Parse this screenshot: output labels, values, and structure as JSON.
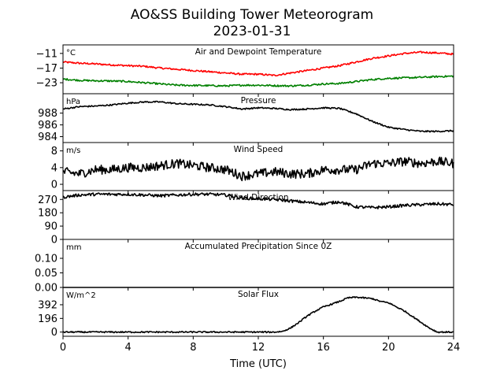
{
  "figure": {
    "title_line1": "AO&SS Building Tower Meteorogram",
    "title_line2": "2023-01-31",
    "xlabel": "Time (UTC)"
  },
  "chart_data": [
    {
      "type": "line",
      "title": "Air and Dewpoint Temperature",
      "unit_label": "°C",
      "ylim": [
        -27.5,
        -7.5
      ],
      "yticks": [
        -11,
        -17,
        -23
      ],
      "ytick_labels": [
        "−11",
        "−17",
        "−23"
      ],
      "xlim": [
        0,
        24
      ],
      "colors": [
        "#ff0000",
        "#008000"
      ],
      "series": [
        {
          "x": [
            0,
            1,
            2,
            3,
            4,
            5,
            6,
            7,
            8,
            9,
            10,
            11,
            12,
            13,
            14,
            15,
            16,
            17,
            18,
            19,
            20,
            21,
            22,
            23,
            24
          ],
          "values": [
            -14.5,
            -15,
            -15.3,
            -15.7,
            -16,
            -16.3,
            -17,
            -17.5,
            -18,
            -18.5,
            -19,
            -19.5,
            -19.5,
            -20,
            -19,
            -18,
            -17,
            -16,
            -14.5,
            -13,
            -12,
            -11,
            -10.5,
            -10.8,
            -11.3
          ],
          "noise": 0.35
        },
        {
          "x": [
            0,
            1,
            2,
            3,
            4,
            5,
            6,
            7,
            8,
            9,
            10,
            11,
            12,
            13,
            14,
            15,
            16,
            17,
            18,
            19,
            20,
            21,
            22,
            23,
            24
          ],
          "values": [
            -21.5,
            -22,
            -22.2,
            -22.3,
            -22.5,
            -23,
            -23.5,
            -24,
            -24.1,
            -24.2,
            -24.3,
            -24,
            -24,
            -24.2,
            -24.3,
            -24,
            -23.5,
            -23.3,
            -22.5,
            -21.7,
            -21.2,
            -21,
            -20.8,
            -20.5,
            -20.3
          ],
          "noise": 0.35
        }
      ]
    },
    {
      "type": "line",
      "title": "Pressure",
      "unit_label": "hPa",
      "ylim": [
        983,
        991.3
      ],
      "yticks": [
        988,
        986,
        984
      ],
      "ytick_labels": [
        "988",
        "986",
        "984"
      ],
      "xlim": [
        0,
        24
      ],
      "colors": [
        "#000000"
      ],
      "series": [
        {
          "x": [
            0,
            1,
            2,
            3,
            4,
            5,
            6,
            7,
            8,
            9,
            10,
            11,
            12,
            13,
            14,
            15,
            16,
            17,
            18,
            19,
            20,
            21,
            22,
            23,
            24
          ],
          "values": [
            988.7,
            989.1,
            989.2,
            989.4,
            989.7,
            989.9,
            989.9,
            989.6,
            989.5,
            989.4,
            989.1,
            988.7,
            988.9,
            988.8,
            988.6,
            988.7,
            988.9,
            988.8,
            987.9,
            986.6,
            985.6,
            985.2,
            984.9,
            984.9,
            985.0
          ],
          "noise": 0.12
        }
      ]
    },
    {
      "type": "line",
      "title": "Wind Speed",
      "unit_label": "m/s",
      "ylim": [
        -1.5,
        10
      ],
      "yticks": [
        8,
        4,
        0
      ],
      "ytick_labels": [
        "8",
        "4",
        "0"
      ],
      "xlim": [
        0,
        24
      ],
      "colors": [
        "#000000"
      ],
      "series": [
        {
          "x": [
            0,
            1,
            2,
            3,
            4,
            5,
            6,
            7,
            8,
            9,
            10,
            11,
            12,
            13,
            14,
            15,
            16,
            17,
            18,
            19,
            20,
            21,
            22,
            23,
            24
          ],
          "values": [
            3,
            2.5,
            3.5,
            3.5,
            4,
            4,
            4.5,
            5,
            4.5,
            4,
            3.5,
            2,
            2.5,
            3,
            2.5,
            2.5,
            3.5,
            3.5,
            3.5,
            5,
            5,
            5.5,
            5,
            5.5,
            5
          ],
          "noise": 1.1
        }
      ]
    },
    {
      "type": "line",
      "title": "Wind Direction",
      "unit_label": "",
      "ylim": [
        0,
        330
      ],
      "yticks": [
        270,
        180,
        90,
        0
      ],
      "ytick_labels": [
        "270",
        "180",
        "90",
        "0"
      ],
      "xlim": [
        0,
        24
      ],
      "colors": [
        "#000000"
      ],
      "series": [
        {
          "x": [
            0,
            1,
            2,
            3,
            4,
            5,
            6,
            7,
            8,
            9,
            10,
            11,
            12,
            13,
            14,
            15,
            16,
            17,
            18,
            19,
            20,
            21,
            22,
            23,
            24
          ],
          "values": [
            285,
            300,
            305,
            305,
            305,
            300,
            295,
            300,
            305,
            305,
            300,
            280,
            275,
            270,
            260,
            250,
            240,
            255,
            220,
            215,
            220,
            230,
            235,
            240,
            235
          ],
          "noise": 10
        }
      ]
    },
    {
      "type": "line",
      "title": "Accumulated Precipitation Since 0Z",
      "unit_label": "mm",
      "ylim": [
        0,
        0.165
      ],
      "yticks": [
        0.1,
        0.05,
        0.0
      ],
      "ytick_labels": [
        "0.10",
        "0.05",
        "0.00"
      ],
      "xlim": [
        0,
        24
      ],
      "colors": [
        "#000000"
      ],
      "series": [
        {
          "x": [
            0,
            24
          ],
          "values": [
            0,
            0
          ],
          "noise": 0
        }
      ]
    },
    {
      "type": "line",
      "title": "Solar Flux",
      "unit_label": "W/m^2",
      "ylim": [
        -60,
        640
      ],
      "yticks": [
        392,
        196,
        0
      ],
      "ytick_labels": [
        "392",
        "196",
        "0"
      ],
      "xlim": [
        0,
        24
      ],
      "xticks": [
        0,
        4,
        8,
        12,
        16,
        20,
        24
      ],
      "xtick_labels": [
        "0",
        "4",
        "8",
        "12",
        "16",
        "20",
        "24"
      ],
      "colors": [
        "#000000"
      ],
      "series": [
        {
          "x": [
            0,
            13,
            13.5,
            14,
            14.5,
            15,
            15.5,
            16,
            16.5,
            17,
            17.5,
            18,
            18.5,
            19,
            19.5,
            20,
            20.5,
            21,
            21.5,
            22,
            22.5,
            23,
            24
          ],
          "values": [
            0,
            0,
            10,
            60,
            140,
            230,
            300,
            360,
            400,
            440,
            490,
            500,
            490,
            480,
            440,
            420,
            360,
            300,
            220,
            140,
            60,
            0,
            0
          ],
          "noise": 10
        }
      ]
    }
  ]
}
